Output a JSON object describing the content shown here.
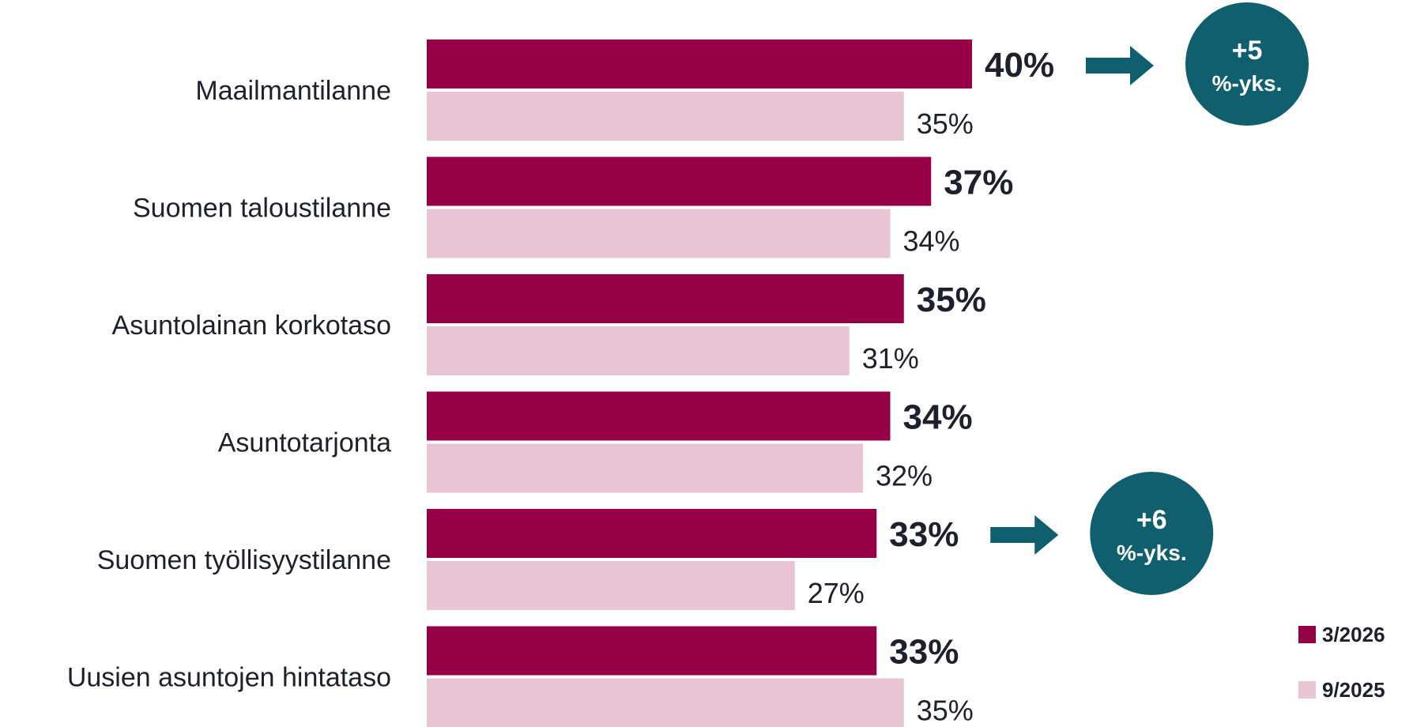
{
  "chart_data": {
    "type": "bar",
    "orientation": "horizontal",
    "categories": [
      "Maailmantilanne",
      "Suomen taloustilanne",
      "Asuntolainan korkotaso",
      "Asuntotarjonta",
      "Suomen työllisyystilanne",
      "Uusien asuntojen hintataso"
    ],
    "series": [
      {
        "name": "3/2026",
        "color": "#950046",
        "values": [
          40,
          37,
          35,
          34,
          33,
          33
        ]
      },
      {
        "name": "9/2025",
        "color": "#e8c4d4",
        "values": [
          35,
          34,
          31,
          32,
          27,
          35
        ]
      }
    ],
    "value_suffix": "%",
    "xlim": [
      0,
      40
    ],
    "grid": false,
    "legend_position": "bottom-right",
    "callouts": [
      {
        "category_index": 0,
        "line1": "+5",
        "line2": "%-yks.",
        "color": "#0f5f6e"
      },
      {
        "category_index": 4,
        "line1": "+6",
        "line2": "%-yks.",
        "color": "#0f5f6e"
      }
    ]
  }
}
